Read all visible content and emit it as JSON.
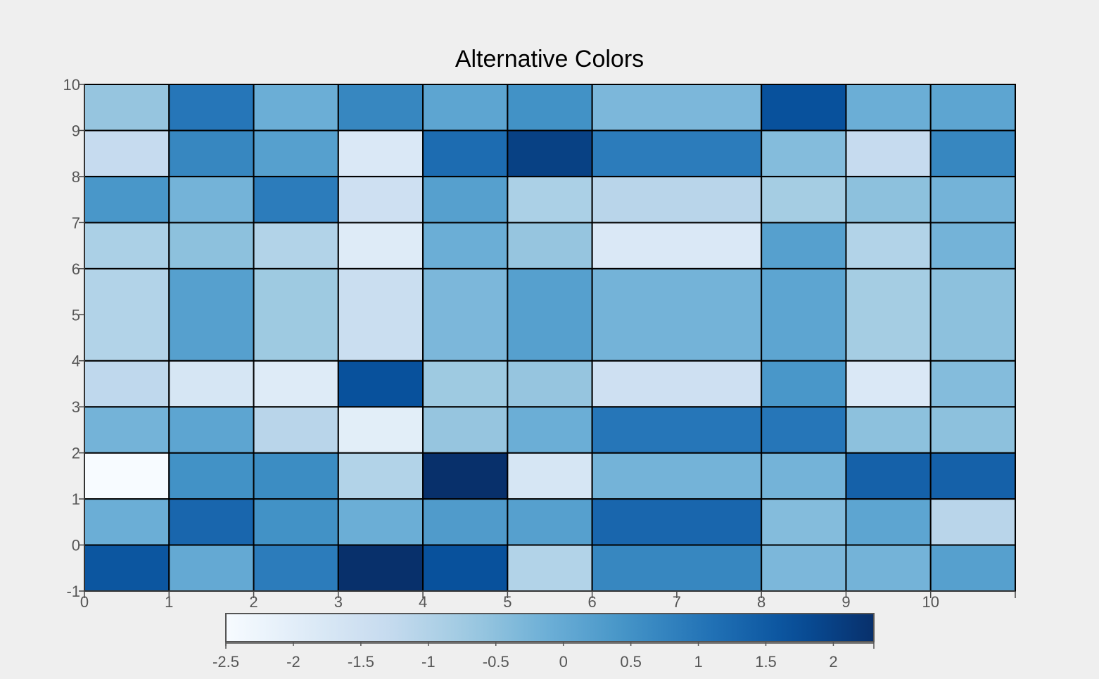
{
  "chart_data": {
    "type": "heatmap",
    "title": "Alternative Colors",
    "xlabel": "",
    "ylabel": "",
    "x_edges": [
      0,
      1,
      2,
      3,
      4,
      5,
      6,
      8,
      9,
      10,
      11
    ],
    "y_edges": [
      -1,
      0,
      1,
      2,
      3,
      4,
      6,
      7,
      8,
      9,
      10
    ],
    "xlim": [
      0,
      11
    ],
    "ylim": [
      -1,
      10
    ],
    "x_ticks": [
      0,
      1,
      2,
      3,
      4,
      5,
      6,
      7,
      8,
      9,
      10,
      11
    ],
    "x_tick_labels": [
      "0",
      "1",
      "2",
      "3",
      "4",
      "5",
      "6",
      "7",
      "8",
      "9",
      "10",
      ""
    ],
    "y_ticks": [
      -1,
      0,
      1,
      2,
      3,
      4,
      5,
      6,
      7,
      8,
      9,
      10
    ],
    "y_tick_labels": [
      "-1",
      "0",
      "1",
      "2",
      "3",
      "4",
      "5",
      "6",
      "7",
      "8",
      "9",
      "10"
    ],
    "colormap": "Blues",
    "colorbar": {
      "min": -2.5,
      "max": 2.3,
      "ticks": [
        -2.5,
        -2,
        -1.5,
        -1,
        -0.5,
        0,
        0.5,
        1,
        1.5,
        2
      ],
      "tick_labels": [
        "-2.5",
        "-2",
        "-1.5",
        "-1",
        "-0.5",
        "0",
        "0.5",
        "1",
        "1.5",
        "2"
      ],
      "position": "bottom"
    },
    "values": [
      [
        1.6,
        0.0,
        0.9,
        2.3,
        1.7,
        -1.0,
        0.7,
        -0.3,
        -0.2,
        0.2
      ],
      [
        -0.1,
        1.3,
        0.5,
        -0.1,
        0.3,
        0.2,
        1.3,
        -0.4,
        0.1,
        -1.1
      ],
      [
        -2.5,
        0.5,
        0.6,
        -1.0,
        2.3,
        -1.7,
        -0.2,
        -0.2,
        1.4,
        1.4
      ],
      [
        -0.2,
        0.1,
        -1.1,
        -2.0,
        -0.6,
        -0.1,
        1.0,
        1.0,
        -0.5,
        -0.5
      ],
      [
        -1.2,
        -1.7,
        -1.9,
        1.7,
        -0.7,
        -0.6,
        -1.5,
        0.4,
        -1.8,
        -0.4
      ],
      [
        -1.0,
        0.2,
        -0.7,
        -1.4,
        -0.3,
        0.2,
        -0.2,
        0.1,
        -0.8,
        -0.5
      ],
      [
        -0.9,
        -0.5,
        -1.0,
        -1.9,
        -0.1,
        -0.6,
        -1.8,
        0.2,
        -1.0,
        -0.2
      ],
      [
        0.4,
        -0.2,
        0.9,
        -1.5,
        0.2,
        -0.9,
        -1.1,
        -0.8,
        -0.5,
        -0.2
      ],
      [
        -1.3,
        0.7,
        0.2,
        -1.8,
        1.2,
        2.0,
        0.9,
        -0.4,
        -1.3,
        0.7
      ],
      [
        -0.6,
        1.0,
        -0.1,
        0.7,
        0.1,
        0.5,
        -0.3,
        1.7,
        -0.1,
        0.1
      ]
    ]
  }
}
